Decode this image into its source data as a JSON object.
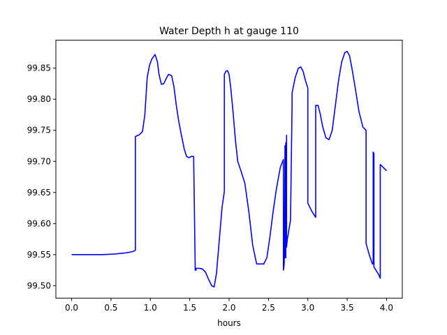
{
  "chart_data": {
    "type": "line",
    "title": "Water Depth h at gauge 110",
    "xlabel": "hours",
    "ylabel": "",
    "xlim": [
      -0.2,
      4.2
    ],
    "ylim": [
      99.48,
      99.895
    ],
    "grid": false,
    "xticks": [
      0.0,
      0.5,
      1.0,
      1.5,
      2.0,
      2.5,
      3.0,
      3.5,
      4.0
    ],
    "xtick_labels": [
      "0.0",
      "0.5",
      "1.0",
      "1.5",
      "2.0",
      "2.5",
      "3.0",
      "3.5",
      "4.0"
    ],
    "yticks": [
      99.5,
      99.55,
      99.6,
      99.65,
      99.7,
      99.75,
      99.8,
      99.85
    ],
    "ytick_labels": [
      "99.50",
      "99.55",
      "99.60",
      "99.65",
      "99.70",
      "99.75",
      "99.80",
      "99.85"
    ],
    "series": [
      {
        "name": "",
        "color": "#0000ff",
        "x": [
          0.0,
          0.2,
          0.4,
          0.55,
          0.7,
          0.78,
          0.81,
          0.81,
          0.86,
          0.9,
          0.93,
          0.96,
          0.99,
          1.02,
          1.06,
          1.09,
          1.11,
          1.14,
          1.17,
          1.2,
          1.23,
          1.27,
          1.3,
          1.33,
          1.36,
          1.39,
          1.43,
          1.46,
          1.49,
          1.52,
          1.55,
          1.57,
          1.58,
          1.58,
          1.62,
          1.66,
          1.7,
          1.74,
          1.78,
          1.81,
          1.84,
          1.88,
          1.91,
          1.94,
          1.94,
          1.96,
          1.98,
          2.0,
          2.02,
          2.05,
          2.08,
          2.11,
          2.15,
          2.2,
          2.25,
          2.3,
          2.35,
          2.4,
          2.44,
          2.48,
          2.52,
          2.56,
          2.6,
          2.65,
          2.69,
          2.69,
          2.7,
          2.71,
          2.71,
          2.72,
          2.72,
          2.73,
          2.73,
          2.74,
          2.74,
          2.78,
          2.8,
          2.8,
          2.84,
          2.88,
          2.91,
          2.94,
          2.97,
          3.0,
          3.0,
          3.05,
          3.1,
          3.1,
          3.13,
          3.16,
          3.19,
          3.23,
          3.27,
          3.31,
          3.35,
          3.39,
          3.43,
          3.47,
          3.5,
          3.53,
          3.56,
          3.6,
          3.65,
          3.7,
          3.74,
          3.74,
          3.78,
          3.82,
          3.83,
          3.83,
          3.84,
          3.84,
          3.9,
          3.92,
          3.92,
          3.96,
          4.0
        ],
        "y": [
          99.55,
          99.55,
          99.55,
          99.551,
          99.553,
          99.555,
          99.557,
          99.74,
          99.743,
          99.748,
          99.775,
          99.835,
          99.855,
          99.865,
          99.872,
          99.86,
          99.84,
          99.824,
          99.825,
          99.833,
          99.84,
          99.838,
          99.82,
          99.79,
          99.765,
          99.745,
          99.72,
          99.708,
          99.706,
          99.708,
          99.708,
          99.525,
          99.525,
          99.528,
          99.528,
          99.527,
          99.522,
          99.51,
          99.5,
          99.498,
          99.52,
          99.58,
          99.625,
          99.652,
          99.84,
          99.845,
          99.846,
          99.84,
          99.82,
          99.78,
          99.735,
          99.7,
          99.685,
          99.665,
          99.62,
          99.565,
          99.535,
          99.535,
          99.535,
          99.545,
          99.58,
          99.62,
          99.655,
          99.69,
          99.703,
          99.525,
          99.535,
          99.725,
          99.545,
          99.73,
          99.545,
          99.742,
          99.562,
          99.575,
          99.575,
          99.605,
          99.79,
          99.81,
          99.835,
          99.85,
          99.852,
          99.845,
          99.83,
          99.818,
          99.633,
          99.62,
          99.61,
          99.79,
          99.79,
          99.775,
          99.755,
          99.738,
          99.735,
          99.75,
          99.79,
          99.83,
          99.86,
          99.875,
          99.877,
          99.87,
          99.85,
          99.82,
          99.78,
          99.755,
          99.75,
          99.568,
          99.55,
          99.535,
          99.535,
          99.715,
          99.713,
          99.53,
          99.518,
          99.512,
          99.695,
          99.69,
          99.685
        ]
      }
    ]
  }
}
